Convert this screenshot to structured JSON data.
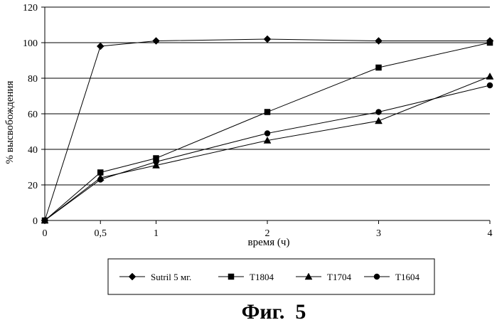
{
  "chart_data": {
    "type": "line",
    "x": [
      "0",
      "0,5",
      "1",
      "2",
      "3",
      "4"
    ],
    "x_values": [
      0,
      0.5,
      1,
      2,
      3,
      4
    ],
    "xlabel": "время (ч)",
    "ylabel": "% высвобождения",
    "ylim": [
      0,
      120
    ],
    "y_ticks": [
      "0",
      "20",
      "40",
      "60",
      "80",
      "100",
      "120"
    ],
    "grid": "horizontal",
    "legend_position": "bottom",
    "series": [
      {
        "name": "Sutril 5 мг.",
        "marker": "diamond",
        "values": [
          0,
          98,
          101,
          102,
          101,
          101
        ]
      },
      {
        "name": "T1804",
        "marker": "square",
        "values": [
          0,
          27,
          35,
          61,
          86,
          100
        ]
      },
      {
        "name": "T1704",
        "marker": "triangle",
        "values": [
          0,
          24,
          31,
          45,
          56,
          81
        ]
      },
      {
        "name": "T1604",
        "marker": "circle",
        "values": [
          0,
          23,
          33,
          49,
          61,
          76
        ]
      }
    ]
  },
  "caption": "Фиг.  5"
}
